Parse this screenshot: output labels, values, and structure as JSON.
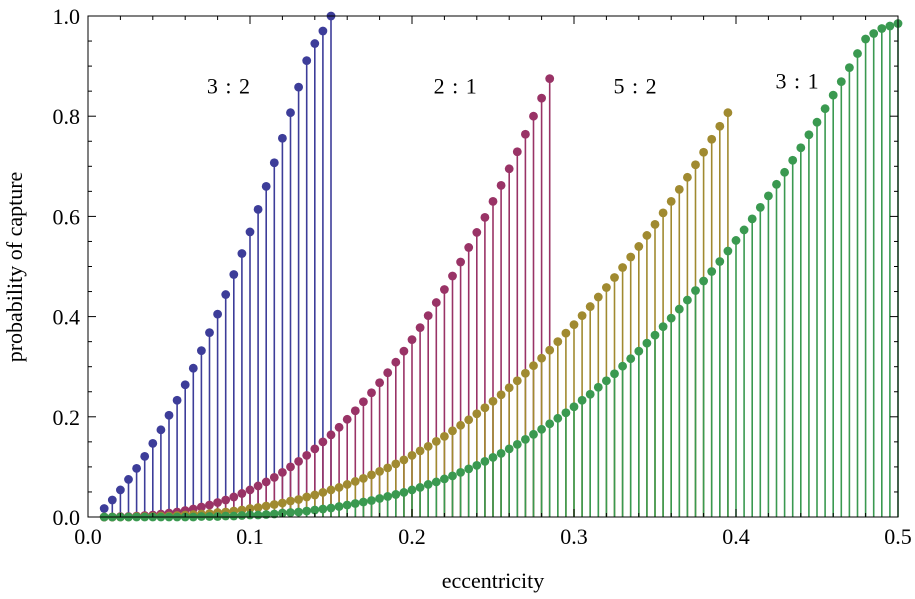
{
  "chart_data": {
    "type": "scatter",
    "style": "stem",
    "xlabel": "eccentricity",
    "ylabel": "probability of capture",
    "xlim": [
      0.0,
      0.5
    ],
    "ylim": [
      0.0,
      1.0
    ],
    "xticks": [
      0.0,
      0.1,
      0.2,
      0.3,
      0.4,
      0.5
    ],
    "xtick_labels": [
      "0.0",
      "0.1",
      "0.2",
      "0.3",
      "0.4",
      "0.5"
    ],
    "yticks": [
      0.0,
      0.2,
      0.4,
      0.6,
      0.8,
      1.0
    ],
    "ytick_labels": [
      "0.0",
      "0.2",
      "0.4",
      "0.6",
      "0.8",
      "1.0"
    ],
    "grid": false,
    "frame": "box",
    "series": [
      {
        "name": "3 : 2",
        "color": "#3d3d99",
        "x": [
          0.01,
          0.015,
          0.02,
          0.025,
          0.03,
          0.035,
          0.04,
          0.045,
          0.05,
          0.055,
          0.06,
          0.065,
          0.07,
          0.075,
          0.08,
          0.085,
          0.09,
          0.095,
          0.1,
          0.105,
          0.11,
          0.115,
          0.12,
          0.125,
          0.13,
          0.135,
          0.14,
          0.145,
          0.15
        ],
        "y": [
          0.017,
          0.034,
          0.054,
          0.075,
          0.097,
          0.121,
          0.147,
          0.174,
          0.203,
          0.233,
          0.264,
          0.297,
          0.332,
          0.368,
          0.405,
          0.444,
          0.484,
          0.526,
          0.569,
          0.614,
          0.66,
          0.707,
          0.756,
          0.807,
          0.858,
          0.911,
          0.945,
          0.97,
          1.0
        ]
      },
      {
        "name": "2 : 1",
        "color": "#993366",
        "x": [
          0.01,
          0.015,
          0.02,
          0.025,
          0.03,
          0.035,
          0.04,
          0.045,
          0.05,
          0.055,
          0.06,
          0.065,
          0.07,
          0.075,
          0.08,
          0.085,
          0.09,
          0.095,
          0.1,
          0.105,
          0.11,
          0.115,
          0.12,
          0.125,
          0.13,
          0.135,
          0.14,
          0.145,
          0.15,
          0.155,
          0.16,
          0.165,
          0.17,
          0.175,
          0.18,
          0.185,
          0.19,
          0.195,
          0.2,
          0.205,
          0.21,
          0.215,
          0.22,
          0.225,
          0.23,
          0.235,
          0.24,
          0.245,
          0.25,
          0.255,
          0.26,
          0.265,
          0.27,
          0.275,
          0.28,
          0.285
        ],
        "y": [
          0.0,
          0.0,
          0.001,
          0.001,
          0.002,
          0.003,
          0.004,
          0.006,
          0.008,
          0.01,
          0.013,
          0.016,
          0.02,
          0.024,
          0.029,
          0.034,
          0.04,
          0.047,
          0.054,
          0.062,
          0.07,
          0.079,
          0.089,
          0.1,
          0.111,
          0.123,
          0.136,
          0.15,
          0.164,
          0.179,
          0.195,
          0.212,
          0.23,
          0.248,
          0.268,
          0.288,
          0.309,
          0.331,
          0.354,
          0.378,
          0.402,
          0.428,
          0.454,
          0.481,
          0.509,
          0.538,
          0.568,
          0.598,
          0.63,
          0.662,
          0.695,
          0.729,
          0.764,
          0.8,
          0.836,
          0.875
        ]
      },
      {
        "name": "5 : 2",
        "color": "#a08a30",
        "x": [
          0.01,
          0.015,
          0.02,
          0.025,
          0.03,
          0.035,
          0.04,
          0.045,
          0.05,
          0.055,
          0.06,
          0.065,
          0.07,
          0.075,
          0.08,
          0.085,
          0.09,
          0.095,
          0.1,
          0.105,
          0.11,
          0.115,
          0.12,
          0.125,
          0.13,
          0.135,
          0.14,
          0.145,
          0.15,
          0.155,
          0.16,
          0.165,
          0.17,
          0.175,
          0.18,
          0.185,
          0.19,
          0.195,
          0.2,
          0.205,
          0.21,
          0.215,
          0.22,
          0.225,
          0.23,
          0.235,
          0.24,
          0.245,
          0.25,
          0.255,
          0.26,
          0.265,
          0.27,
          0.275,
          0.28,
          0.285,
          0.29,
          0.295,
          0.3,
          0.305,
          0.31,
          0.315,
          0.32,
          0.325,
          0.33,
          0.335,
          0.34,
          0.345,
          0.35,
          0.355,
          0.36,
          0.365,
          0.37,
          0.375,
          0.38,
          0.385,
          0.39,
          0.395
        ],
        "y": [
          0.0,
          0.0,
          0.0,
          0.0,
          0.001,
          0.001,
          0.001,
          0.002,
          0.002,
          0.003,
          0.004,
          0.005,
          0.006,
          0.007,
          0.009,
          0.01,
          0.012,
          0.014,
          0.017,
          0.019,
          0.022,
          0.025,
          0.028,
          0.032,
          0.035,
          0.04,
          0.044,
          0.049,
          0.054,
          0.059,
          0.065,
          0.071,
          0.077,
          0.084,
          0.091,
          0.098,
          0.106,
          0.114,
          0.123,
          0.132,
          0.141,
          0.151,
          0.161,
          0.172,
          0.183,
          0.194,
          0.206,
          0.218,
          0.231,
          0.244,
          0.258,
          0.272,
          0.287,
          0.302,
          0.317,
          0.333,
          0.35,
          0.367,
          0.384,
          0.402,
          0.42,
          0.439,
          0.458,
          0.478,
          0.498,
          0.519,
          0.54,
          0.562,
          0.584,
          0.607,
          0.63,
          0.654,
          0.678,
          0.703,
          0.728,
          0.754,
          0.78,
          0.807
        ]
      },
      {
        "name": "3 : 1",
        "color": "#3a9950",
        "x": [
          0.01,
          0.015,
          0.02,
          0.025,
          0.03,
          0.035,
          0.04,
          0.045,
          0.05,
          0.055,
          0.06,
          0.065,
          0.07,
          0.075,
          0.08,
          0.085,
          0.09,
          0.095,
          0.1,
          0.105,
          0.11,
          0.115,
          0.12,
          0.125,
          0.13,
          0.135,
          0.14,
          0.145,
          0.15,
          0.155,
          0.16,
          0.165,
          0.17,
          0.175,
          0.18,
          0.185,
          0.19,
          0.195,
          0.2,
          0.205,
          0.21,
          0.215,
          0.22,
          0.225,
          0.23,
          0.235,
          0.24,
          0.245,
          0.25,
          0.255,
          0.26,
          0.265,
          0.27,
          0.275,
          0.28,
          0.285,
          0.29,
          0.295,
          0.3,
          0.305,
          0.31,
          0.315,
          0.32,
          0.325,
          0.33,
          0.335,
          0.34,
          0.345,
          0.35,
          0.355,
          0.36,
          0.365,
          0.37,
          0.375,
          0.38,
          0.385,
          0.39,
          0.395,
          0.4,
          0.405,
          0.41,
          0.415,
          0.42,
          0.425,
          0.43,
          0.435,
          0.44,
          0.445,
          0.45,
          0.455,
          0.46,
          0.465,
          0.47,
          0.475,
          0.48,
          0.485,
          0.49,
          0.495,
          0.5
        ],
        "y": [
          0.0,
          0.0,
          0.0,
          0.0,
          0.0,
          0.0,
          0.0,
          0.0,
          0.0,
          0.0,
          0.0,
          0.0,
          0.001,
          0.001,
          0.001,
          0.002,
          0.002,
          0.003,
          0.004,
          0.004,
          0.005,
          0.006,
          0.008,
          0.009,
          0.01,
          0.012,
          0.014,
          0.016,
          0.018,
          0.021,
          0.024,
          0.027,
          0.03,
          0.033,
          0.037,
          0.041,
          0.045,
          0.049,
          0.054,
          0.059,
          0.065,
          0.07,
          0.076,
          0.082,
          0.089,
          0.096,
          0.103,
          0.111,
          0.119,
          0.127,
          0.136,
          0.145,
          0.155,
          0.165,
          0.175,
          0.186,
          0.197,
          0.208,
          0.22,
          0.233,
          0.245,
          0.259,
          0.272,
          0.286,
          0.301,
          0.316,
          0.331,
          0.347,
          0.363,
          0.38,
          0.397,
          0.415,
          0.433,
          0.452,
          0.471,
          0.49,
          0.51,
          0.531,
          0.552,
          0.573,
          0.595,
          0.618,
          0.641,
          0.664,
          0.688,
          0.712,
          0.737,
          0.763,
          0.788,
          0.815,
          0.842,
          0.869,
          0.897,
          0.925,
          0.954,
          0.965,
          0.975,
          0.98,
          0.985
        ]
      }
    ],
    "annotations": [
      {
        "text": "3 : 2",
        "x": 0.087,
        "y": 0.845,
        "series": 0
      },
      {
        "text": "2 : 1",
        "x": 0.227,
        "y": 0.845,
        "series": 1
      },
      {
        "text": "5 : 2",
        "x": 0.338,
        "y": 0.845,
        "series": 2
      },
      {
        "text": "3 : 1",
        "x": 0.438,
        "y": 0.855,
        "series": 3
      }
    ]
  }
}
